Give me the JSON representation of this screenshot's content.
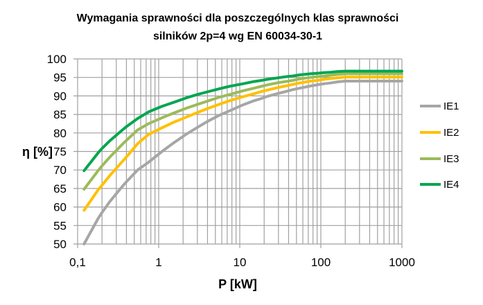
{
  "chart_data": {
    "type": "line",
    "title": [
      "Wymagania sprawności dla poszczególnych klas sprawności",
      "silników 2p=4 wg EN 60034-30-1"
    ],
    "xlabel": "P [kW]",
    "ylabel": "η [%]",
    "xscale": "log",
    "xlim": [
      0.1,
      1000
    ],
    "ylim": [
      50,
      100
    ],
    "xticks": [
      0.1,
      1,
      10,
      100,
      1000
    ],
    "xtick_labels": [
      "0,1",
      "1",
      "10",
      "100",
      "1000"
    ],
    "yticks": [
      50,
      55,
      60,
      65,
      70,
      75,
      80,
      85,
      90,
      95,
      100
    ],
    "ytick_labels": [
      "50",
      "55",
      "60",
      "65",
      "70",
      "75",
      "80",
      "85",
      "90",
      "95",
      "100"
    ],
    "grid": true,
    "legend_position": "right",
    "x": [
      0.12,
      0.18,
      0.2,
      0.25,
      0.37,
      0.4,
      0.55,
      0.75,
      1.1,
      1.5,
      2.2,
      3,
      4,
      5.5,
      7.5,
      11,
      15,
      18.5,
      22,
      30,
      37,
      45,
      55,
      75,
      90,
      110,
      132,
      160,
      200,
      1000
    ],
    "series": [
      {
        "name": "IE1",
        "color": "#a6a6a6",
        "values": [
          50.0,
          57.0,
          58.5,
          61.5,
          66.0,
          66.8,
          70.0,
          72.1,
          75.0,
          77.2,
          79.7,
          81.5,
          83.1,
          84.7,
          86.0,
          87.6,
          88.7,
          89.3,
          89.9,
          90.7,
          91.2,
          91.7,
          92.1,
          92.7,
          93.0,
          93.3,
          93.5,
          93.8,
          94.0,
          94.0
        ]
      },
      {
        "name": "IE2",
        "color": "#ffc000",
        "values": [
          59.1,
          64.7,
          65.9,
          68.5,
          72.7,
          73.5,
          77.1,
          79.6,
          81.4,
          82.8,
          84.3,
          85.5,
          86.6,
          87.7,
          88.7,
          89.8,
          90.6,
          91.2,
          91.6,
          92.3,
          92.7,
          93.1,
          93.5,
          94.0,
          94.2,
          94.5,
          94.7,
          94.9,
          95.1,
          95.1
        ]
      },
      {
        "name": "IE3",
        "color": "#9bbb59",
        "values": [
          64.8,
          69.9,
          71.1,
          73.5,
          77.3,
          78.0,
          80.8,
          82.5,
          84.1,
          85.3,
          86.7,
          87.7,
          88.6,
          89.6,
          90.4,
          91.4,
          92.1,
          92.6,
          93.0,
          93.6,
          93.9,
          94.2,
          94.6,
          95.0,
          95.2,
          95.4,
          95.6,
          95.8,
          96.0,
          96.0
        ]
      },
      {
        "name": "IE4",
        "color": "#00a650",
        "values": [
          69.8,
          74.7,
          75.8,
          77.9,
          81.1,
          81.7,
          83.9,
          85.7,
          87.2,
          88.2,
          89.5,
          90.4,
          91.1,
          91.9,
          92.6,
          93.3,
          93.9,
          94.2,
          94.5,
          94.9,
          95.2,
          95.4,
          95.7,
          96.0,
          96.1,
          96.3,
          96.4,
          96.6,
          96.7,
          96.7
        ]
      }
    ]
  }
}
